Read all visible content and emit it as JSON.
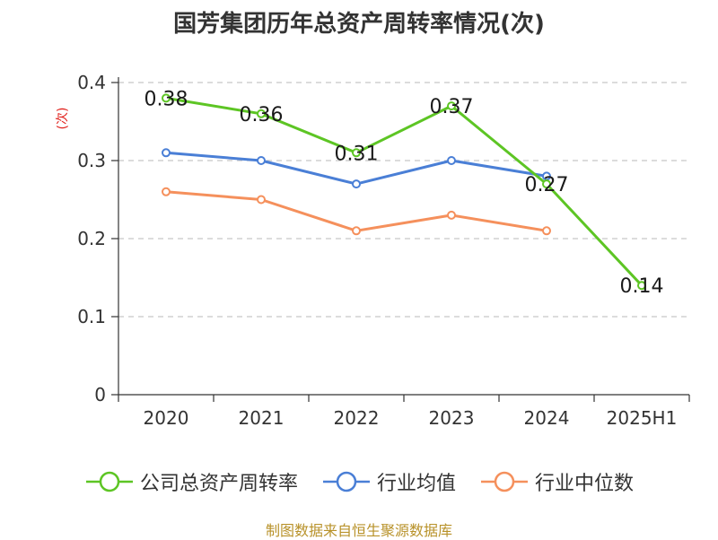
{
  "title": "国芳集团历年总资产周转率情况(次)",
  "source": "制图数据来自恒生聚源数据库",
  "chart_data": {
    "type": "line",
    "title": "国芳集团历年总资产周转率情况(次)",
    "ylabel": "(次)",
    "xlabel": "",
    "categories": [
      "2020",
      "2021",
      "2022",
      "2023",
      "2024",
      "2025H1"
    ],
    "ylim": [
      0,
      0.4
    ],
    "yticks": [
      "0",
      "0.1",
      "0.2",
      "0.3",
      "0.4"
    ],
    "grid": true,
    "legend_position": "bottom",
    "series": [
      {
        "name": "公司总资产周转率",
        "color": "#5dc524",
        "values": [
          0.38,
          0.36,
          0.31,
          0.37,
          0.27,
          0.14
        ],
        "labels": [
          "0.38",
          "0.36",
          "0.31",
          "0.37",
          "0.27",
          "0.14"
        ]
      },
      {
        "name": "行业均值",
        "color": "#4a7fd6",
        "values": [
          0.31,
          0.3,
          0.27,
          0.3,
          0.28,
          null
        ]
      },
      {
        "name": "行业中位数",
        "color": "#f5905c",
        "values": [
          0.26,
          0.25,
          0.21,
          0.23,
          0.21,
          null
        ]
      }
    ]
  }
}
